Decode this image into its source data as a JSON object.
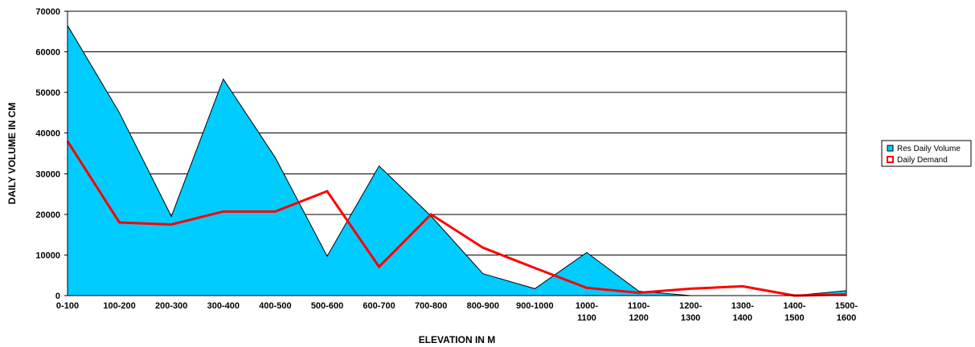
{
  "chart_data": {
    "type": "area",
    "title": "",
    "xlabel": "ELEVATION IN M",
    "ylabel": "DAILY VOLUME IN CM",
    "ylim": [
      0,
      70000
    ],
    "yticks": [
      "0",
      "10000",
      "20000",
      "30000",
      "40000",
      "50000",
      "60000",
      "70000"
    ],
    "grid": true,
    "legend_position": "right",
    "categories": [
      [
        "0-100"
      ],
      [
        "100-200"
      ],
      [
        "200-300"
      ],
      [
        "300-400"
      ],
      [
        "400-500"
      ],
      [
        "500-600"
      ],
      [
        "600-700"
      ],
      [
        "700-800"
      ],
      [
        "800-900"
      ],
      [
        "900-1000"
      ],
      [
        "1000-",
        "1100"
      ],
      [
        "1100-",
        "1200"
      ],
      [
        "1200-",
        "1300"
      ],
      [
        "1300-",
        "1400"
      ],
      [
        "1400-",
        "1500"
      ],
      [
        "1500-",
        "1600"
      ]
    ],
    "series": [
      {
        "name": "Res Daily Volume",
        "type": "area",
        "color": "#00ccff",
        "values": [
          66500,
          45000,
          19500,
          53300,
          34000,
          9700,
          31900,
          19600,
          5400,
          1700,
          10600,
          1100,
          0,
          0,
          0,
          1200
        ]
      },
      {
        "name": "Daily Demand",
        "type": "line",
        "color": "#ff0000",
        "values": [
          38000,
          18000,
          17500,
          20700,
          20700,
          25700,
          7100,
          20000,
          11800,
          6800,
          1900,
          700,
          1700,
          2300,
          0,
          300
        ]
      }
    ]
  }
}
